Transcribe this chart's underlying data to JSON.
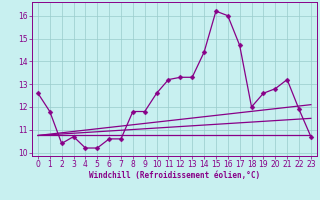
{
  "x": [
    0,
    1,
    2,
    3,
    4,
    5,
    6,
    7,
    8,
    9,
    10,
    11,
    12,
    13,
    14,
    15,
    16,
    17,
    18,
    19,
    20,
    21,
    22,
    23
  ],
  "windchill": [
    12.6,
    11.8,
    10.4,
    10.7,
    10.2,
    10.2,
    10.6,
    10.6,
    11.8,
    11.8,
    12.6,
    13.2,
    13.3,
    13.3,
    14.4,
    16.2,
    16.0,
    14.7,
    12.0,
    12.6,
    12.8,
    13.2,
    11.9,
    10.7
  ],
  "flat_line_x": [
    0,
    23
  ],
  "flat_line_y": [
    10.75,
    10.75
  ],
  "trend1_x": [
    0,
    23
  ],
  "trend1_y": [
    10.75,
    12.1
  ],
  "trend2_x": [
    0,
    23
  ],
  "trend2_y": [
    10.75,
    11.5
  ],
  "line_color": "#880088",
  "bg_color": "#c8f0f0",
  "grid_color": "#99cccc",
  "ylim": [
    9.85,
    16.6
  ],
  "xlim": [
    -0.5,
    23.5
  ],
  "yticks": [
    10,
    11,
    12,
    13,
    14,
    15,
    16
  ],
  "xticks": [
    0,
    1,
    2,
    3,
    4,
    5,
    6,
    7,
    8,
    9,
    10,
    11,
    12,
    13,
    14,
    15,
    16,
    17,
    18,
    19,
    20,
    21,
    22,
    23
  ],
  "xlabel": "Windchill (Refroidissement éolien,°C)",
  "markersize": 2.5,
  "linewidth": 0.9,
  "tick_fontsize": 5.5,
  "label_fontsize": 5.5
}
